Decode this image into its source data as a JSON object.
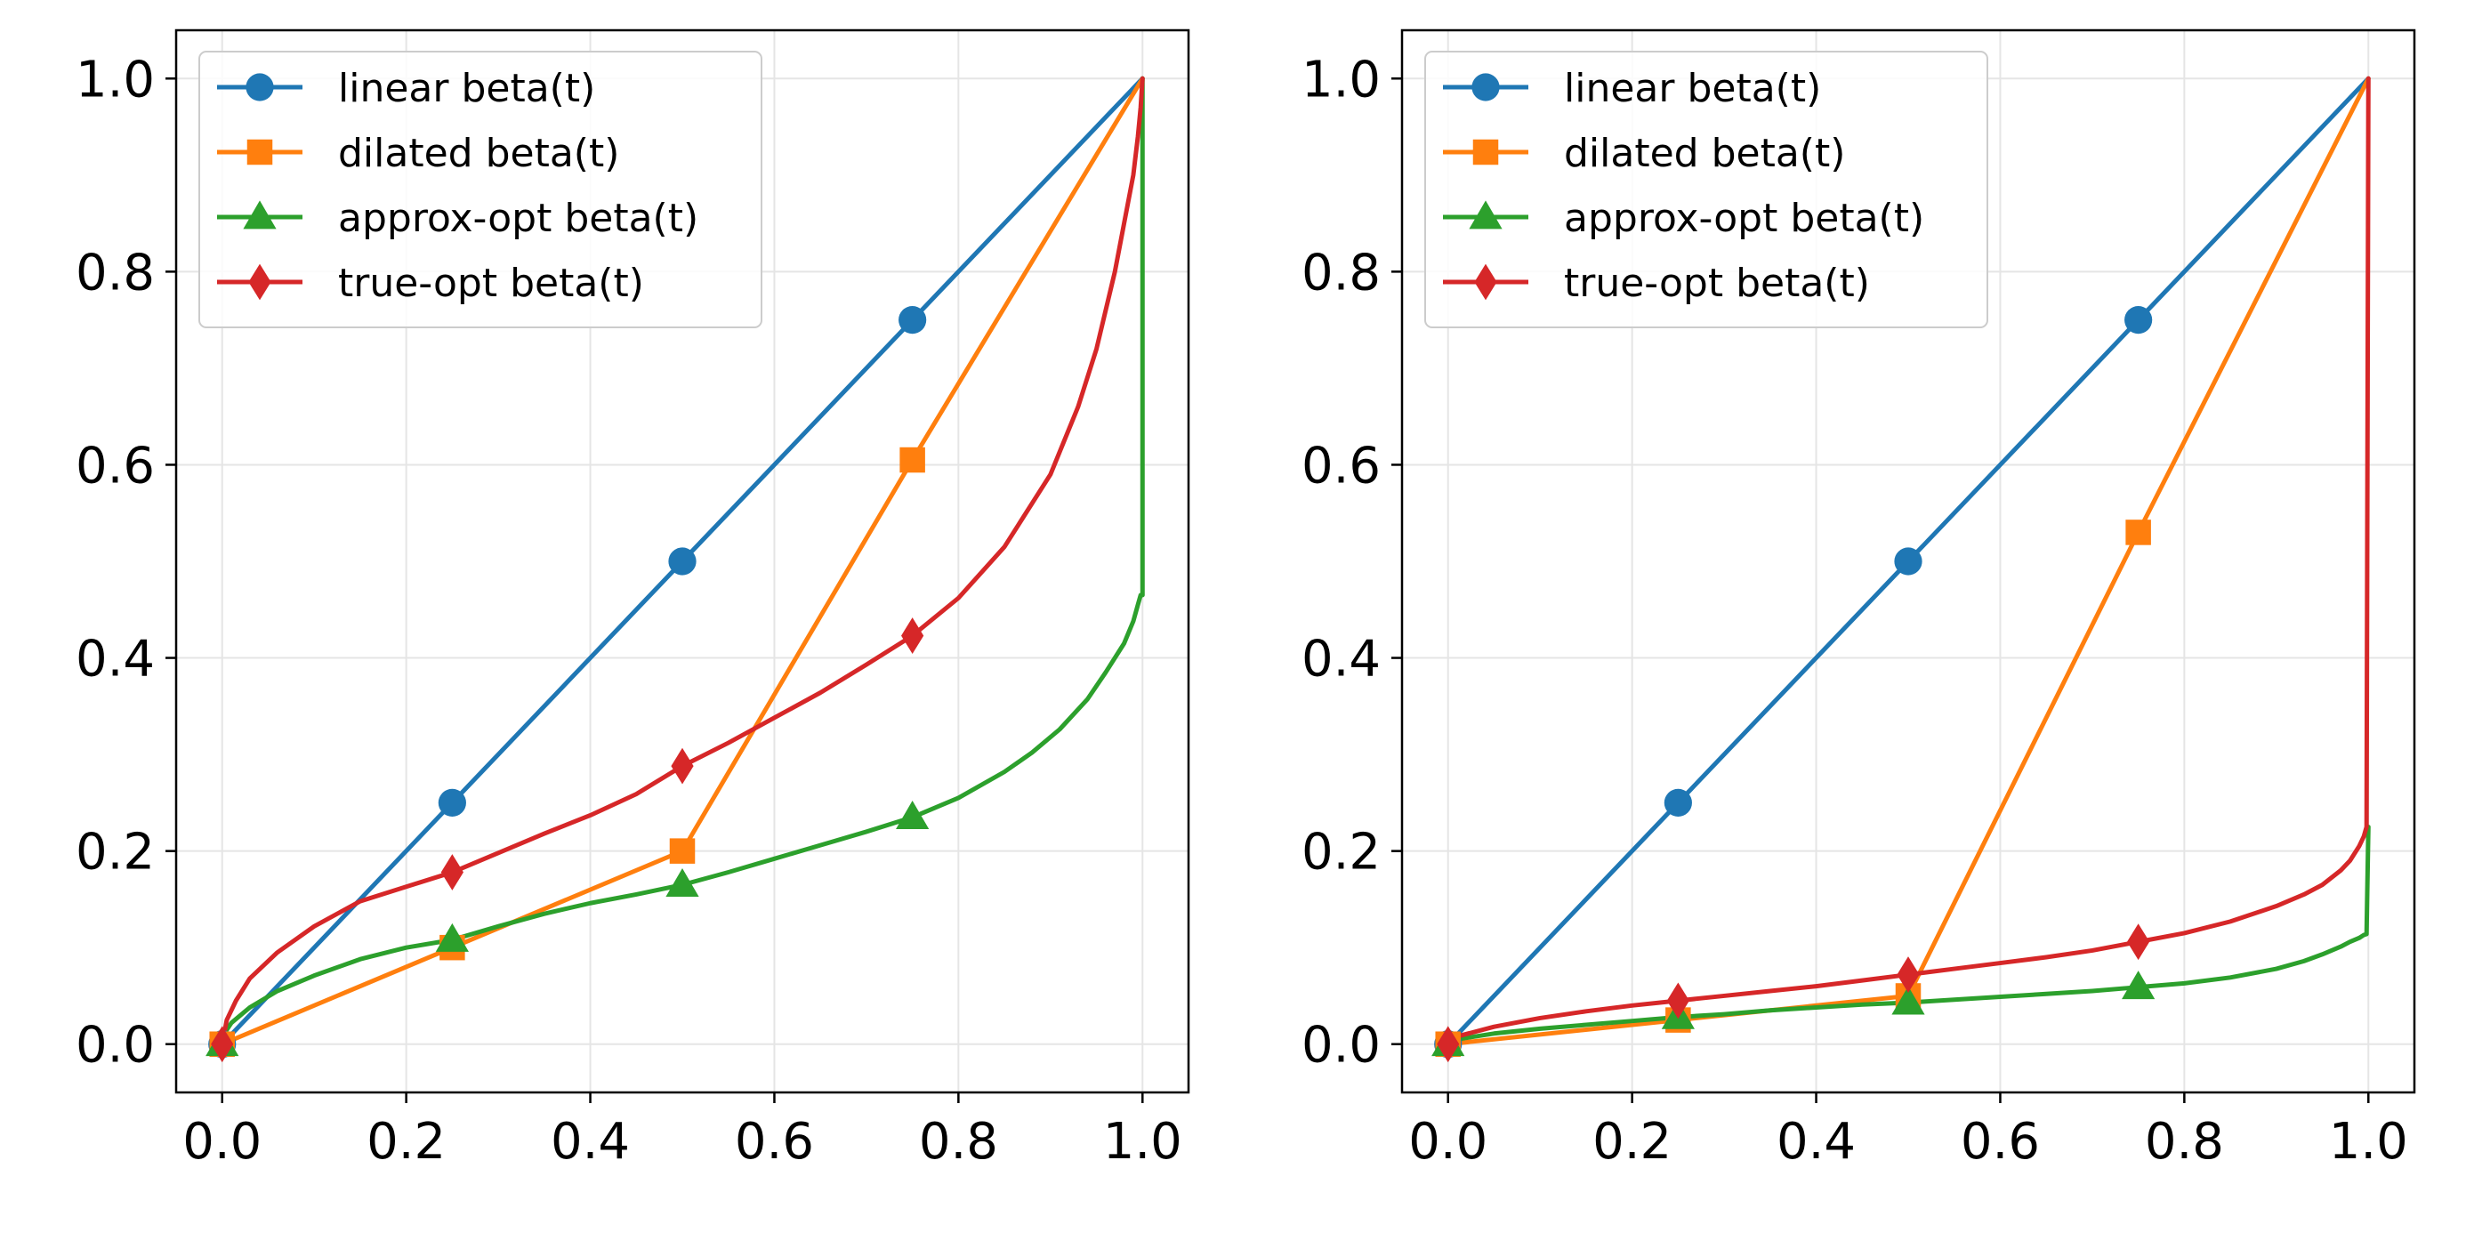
{
  "chart_data": [
    {
      "type": "line",
      "title": "",
      "xlabel": "",
      "ylabel": "",
      "xlim": [
        -0.05,
        1.05
      ],
      "ylim": [
        -0.05,
        1.05
      ],
      "xticks": [
        "0.0",
        "0.2",
        "0.4",
        "0.6",
        "0.8",
        "1.0"
      ],
      "yticks": [
        "0.0",
        "0.2",
        "0.4",
        "0.6",
        "0.8",
        "1.0"
      ],
      "grid": true,
      "legend_position": "top-left",
      "series": [
        {
          "name": "linear beta(t)",
          "color": "#1f77b4",
          "marker": "circle",
          "x": [
            0.0,
            0.25,
            0.5,
            0.75,
            1.0
          ],
          "y": [
            0.0,
            0.25,
            0.5,
            0.75,
            1.0
          ],
          "markers": [
            [
              0.0,
              0.0
            ],
            [
              0.25,
              0.25
            ],
            [
              0.5,
              0.5
            ],
            [
              0.75,
              0.75
            ]
          ]
        },
        {
          "name": "dilated beta(t)",
          "color": "#ff7f0e",
          "marker": "square",
          "x": [
            0.0,
            0.25,
            0.5,
            0.75,
            1.0
          ],
          "y": [
            0.0,
            0.1,
            0.2,
            0.605,
            1.0
          ],
          "markers": [
            [
              0.0,
              0.0
            ],
            [
              0.25,
              0.1
            ],
            [
              0.5,
              0.2
            ],
            [
              0.75,
              0.605
            ]
          ]
        },
        {
          "name": "approx-opt beta(t)",
          "color": "#2ca02c",
          "marker": "triangle",
          "x": [
            0.0,
            0.003,
            0.01,
            0.03,
            0.06,
            0.1,
            0.15,
            0.2,
            0.25,
            0.3,
            0.35,
            0.4,
            0.45,
            0.5,
            0.55,
            0.6,
            0.65,
            0.7,
            0.75,
            0.8,
            0.85,
            0.88,
            0.91,
            0.94,
            0.96,
            0.98,
            0.99,
            0.995,
            0.998,
            1.0,
            1.0
          ],
          "y": [
            0.0,
            0.012,
            0.022,
            0.038,
            0.055,
            0.071,
            0.088,
            0.1,
            0.108,
            0.122,
            0.135,
            0.146,
            0.155,
            0.165,
            0.178,
            0.192,
            0.206,
            0.22,
            0.235,
            0.255,
            0.282,
            0.302,
            0.326,
            0.357,
            0.385,
            0.415,
            0.438,
            0.455,
            0.465,
            0.465,
            1.0
          ],
          "markers": [
            [
              0.0,
              0.0
            ],
            [
              0.25,
              0.108
            ],
            [
              0.5,
              0.165
            ],
            [
              0.75,
              0.235
            ]
          ]
        },
        {
          "name": "true-opt beta(t)",
          "color": "#d62728",
          "marker": "diamond",
          "x": [
            0.0,
            0.005,
            0.015,
            0.03,
            0.06,
            0.1,
            0.15,
            0.2,
            0.25,
            0.3,
            0.35,
            0.4,
            0.45,
            0.5,
            0.55,
            0.6,
            0.65,
            0.7,
            0.75,
            0.8,
            0.85,
            0.9,
            0.93,
            0.95,
            0.97,
            0.98,
            0.99,
            0.995,
            0.998,
            1.0
          ],
          "y": [
            0.0,
            0.025,
            0.045,
            0.068,
            0.095,
            0.122,
            0.148,
            0.163,
            0.178,
            0.198,
            0.218,
            0.237,
            0.259,
            0.288,
            0.312,
            0.338,
            0.364,
            0.393,
            0.423,
            0.462,
            0.515,
            0.59,
            0.66,
            0.72,
            0.8,
            0.85,
            0.9,
            0.94,
            0.97,
            1.0
          ],
          "markers": [
            [
              0.0,
              0.0
            ],
            [
              0.25,
              0.178
            ],
            [
              0.5,
              0.288
            ],
            [
              0.75,
              0.423
            ]
          ]
        }
      ]
    },
    {
      "type": "line",
      "title": "",
      "xlabel": "",
      "ylabel": "",
      "xlim": [
        -0.05,
        1.05
      ],
      "ylim": [
        -0.05,
        1.05
      ],
      "xticks": [
        "0.0",
        "0.2",
        "0.4",
        "0.6",
        "0.8",
        "1.0"
      ],
      "yticks": [
        "0.0",
        "0.2",
        "0.4",
        "0.6",
        "0.8",
        "1.0"
      ],
      "grid": true,
      "legend_position": "top-left",
      "series": [
        {
          "name": "linear beta(t)",
          "color": "#1f77b4",
          "marker": "circle",
          "x": [
            0.0,
            0.25,
            0.5,
            0.75,
            1.0
          ],
          "y": [
            0.0,
            0.25,
            0.5,
            0.75,
            1.0
          ],
          "markers": [
            [
              0.0,
              0.0
            ],
            [
              0.25,
              0.25
            ],
            [
              0.5,
              0.5
            ],
            [
              0.75,
              0.75
            ]
          ]
        },
        {
          "name": "dilated beta(t)",
          "color": "#ff7f0e",
          "marker": "square",
          "x": [
            0.0,
            0.25,
            0.5,
            0.75,
            1.0
          ],
          "y": [
            0.0,
            0.025,
            0.05,
            0.53,
            1.0
          ],
          "markers": [
            [
              0.0,
              0.0
            ],
            [
              0.25,
              0.025
            ],
            [
              0.5,
              0.05
            ],
            [
              0.75,
              0.53
            ]
          ]
        },
        {
          "name": "approx-opt beta(t)",
          "color": "#2ca02c",
          "marker": "triangle",
          "x": [
            0.0,
            0.01,
            0.05,
            0.1,
            0.15,
            0.2,
            0.25,
            0.3,
            0.35,
            0.4,
            0.45,
            0.5,
            0.55,
            0.6,
            0.65,
            0.7,
            0.75,
            0.8,
            0.85,
            0.9,
            0.93,
            0.95,
            0.97,
            0.98,
            0.99,
            0.995,
            0.998,
            1.0
          ],
          "y": [
            0.0,
            0.005,
            0.011,
            0.016,
            0.02,
            0.024,
            0.028,
            0.031,
            0.035,
            0.038,
            0.041,
            0.043,
            0.046,
            0.049,
            0.052,
            0.055,
            0.059,
            0.063,
            0.069,
            0.078,
            0.086,
            0.093,
            0.101,
            0.106,
            0.11,
            0.113,
            0.114,
            0.225
          ],
          "markers": [
            [
              0.0,
              0.0
            ],
            [
              0.25,
              0.028
            ],
            [
              0.5,
              0.043
            ],
            [
              0.75,
              0.059
            ]
          ]
        },
        {
          "name": "true-opt beta(t)",
          "color": "#d62728",
          "marker": "diamond",
          "x": [
            0.0,
            0.01,
            0.05,
            0.1,
            0.15,
            0.2,
            0.25,
            0.3,
            0.35,
            0.4,
            0.45,
            0.5,
            0.55,
            0.6,
            0.65,
            0.7,
            0.75,
            0.8,
            0.85,
            0.9,
            0.93,
            0.95,
            0.97,
            0.98,
            0.99,
            0.995,
            0.998,
            1.0
          ],
          "y": [
            0.0,
            0.008,
            0.018,
            0.027,
            0.034,
            0.04,
            0.045,
            0.05,
            0.055,
            0.06,
            0.066,
            0.072,
            0.078,
            0.084,
            0.09,
            0.097,
            0.106,
            0.115,
            0.127,
            0.143,
            0.155,
            0.165,
            0.18,
            0.19,
            0.205,
            0.215,
            0.225,
            1.0
          ],
          "markers": [
            [
              0.0,
              0.0
            ],
            [
              0.25,
              0.045
            ],
            [
              0.5,
              0.072
            ],
            [
              0.75,
              0.106
            ]
          ]
        }
      ]
    }
  ]
}
